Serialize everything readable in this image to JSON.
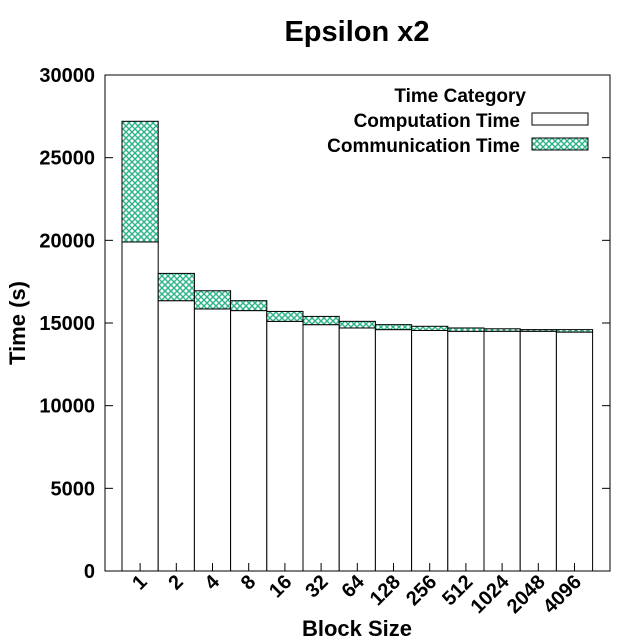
{
  "chart_data": {
    "type": "bar",
    "stacked": true,
    "title": "Epsilon x2",
    "xlabel": "Block Size",
    "ylabel": "Time (s)",
    "ylim": [
      0,
      30000
    ],
    "yticks": [
      0,
      5000,
      10000,
      15000,
      20000,
      25000,
      30000
    ],
    "categories": [
      "1",
      "2",
      "4",
      "8",
      "16",
      "32",
      "64",
      "128",
      "256",
      "512",
      "1024",
      "2048",
      "4096"
    ],
    "legend": {
      "title": "Time Category",
      "position": "top-right"
    },
    "series": [
      {
        "name": "Computation Time",
        "fill": "white",
        "color": "#ffffff",
        "values": [
          19900,
          16350,
          15850,
          15750,
          15100,
          14900,
          14700,
          14600,
          14550,
          14500,
          14500,
          14500,
          14450
        ]
      },
      {
        "name": "Communication Time",
        "fill": "crosshatch",
        "color": "#2db38a",
        "values": [
          7300,
          1650,
          1100,
          600,
          600,
          500,
          400,
          300,
          250,
          200,
          150,
          100,
          150
        ]
      }
    ],
    "grid": false
  }
}
